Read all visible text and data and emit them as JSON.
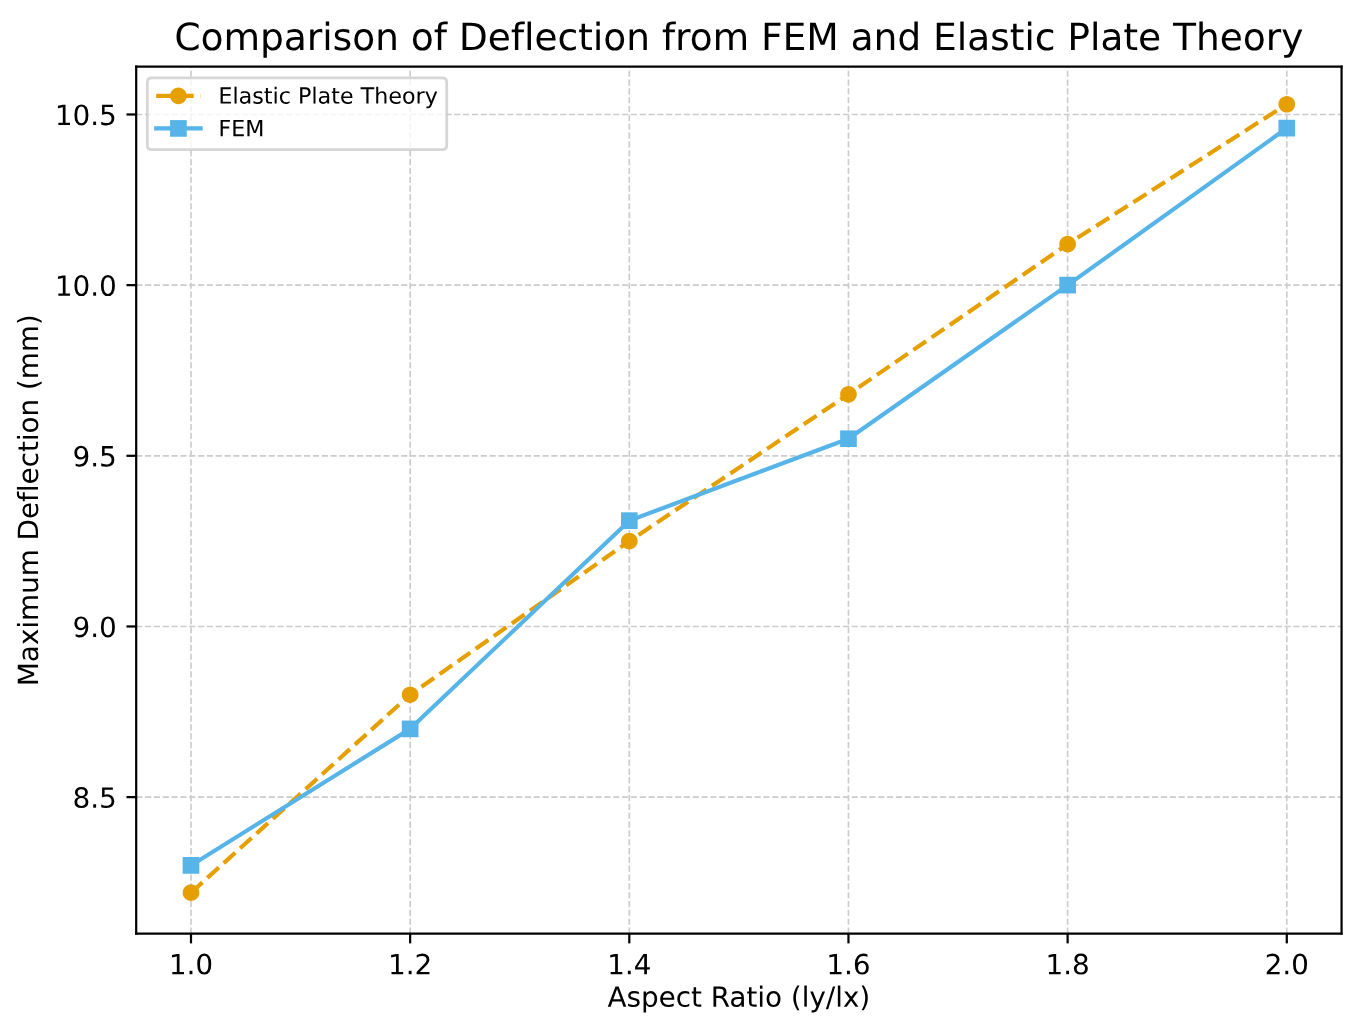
{
  "chart_data": {
    "type": "line",
    "title": "Comparison of Deflection from FEM and Elastic Plate Theory",
    "xlabel": "Aspect Ratio (ly/lx)",
    "ylabel": "Maximum Deflection (mm)",
    "x": [
      1.0,
      1.2,
      1.4,
      1.6,
      1.8,
      2.0
    ],
    "series": [
      {
        "name": "Elastic Plate Theory",
        "color": "#e69f00",
        "values": [
          8.22,
          8.8,
          9.25,
          9.68,
          10.12,
          10.53
        ],
        "marker": "circle",
        "line_style": "dashed"
      },
      {
        "name": "FEM",
        "color": "#56b4e9",
        "values": [
          8.3,
          8.7,
          9.31,
          9.55,
          10.0,
          10.46
        ],
        "marker": "square",
        "line_style": "solid"
      }
    ],
    "xlim": [
      0.95,
      2.05
    ],
    "ylim": [
      8.1,
      10.64
    ],
    "xticks": [
      {
        "value": 1.0,
        "label": "1.0"
      },
      {
        "value": 1.2,
        "label": "1.2"
      },
      {
        "value": 1.4,
        "label": "1.4"
      },
      {
        "value": 1.6,
        "label": "1.6"
      },
      {
        "value": 1.8,
        "label": "1.8"
      },
      {
        "value": 2.0,
        "label": "2.0"
      }
    ],
    "yticks": [
      {
        "value": 8.5,
        "label": "8.5"
      },
      {
        "value": 9.0,
        "label": "9.0"
      },
      {
        "value": 9.5,
        "label": "9.5"
      },
      {
        "value": 10.0,
        "label": "10.0"
      },
      {
        "value": 10.5,
        "label": "10.5"
      }
    ],
    "grid": true,
    "legend": "top left"
  }
}
